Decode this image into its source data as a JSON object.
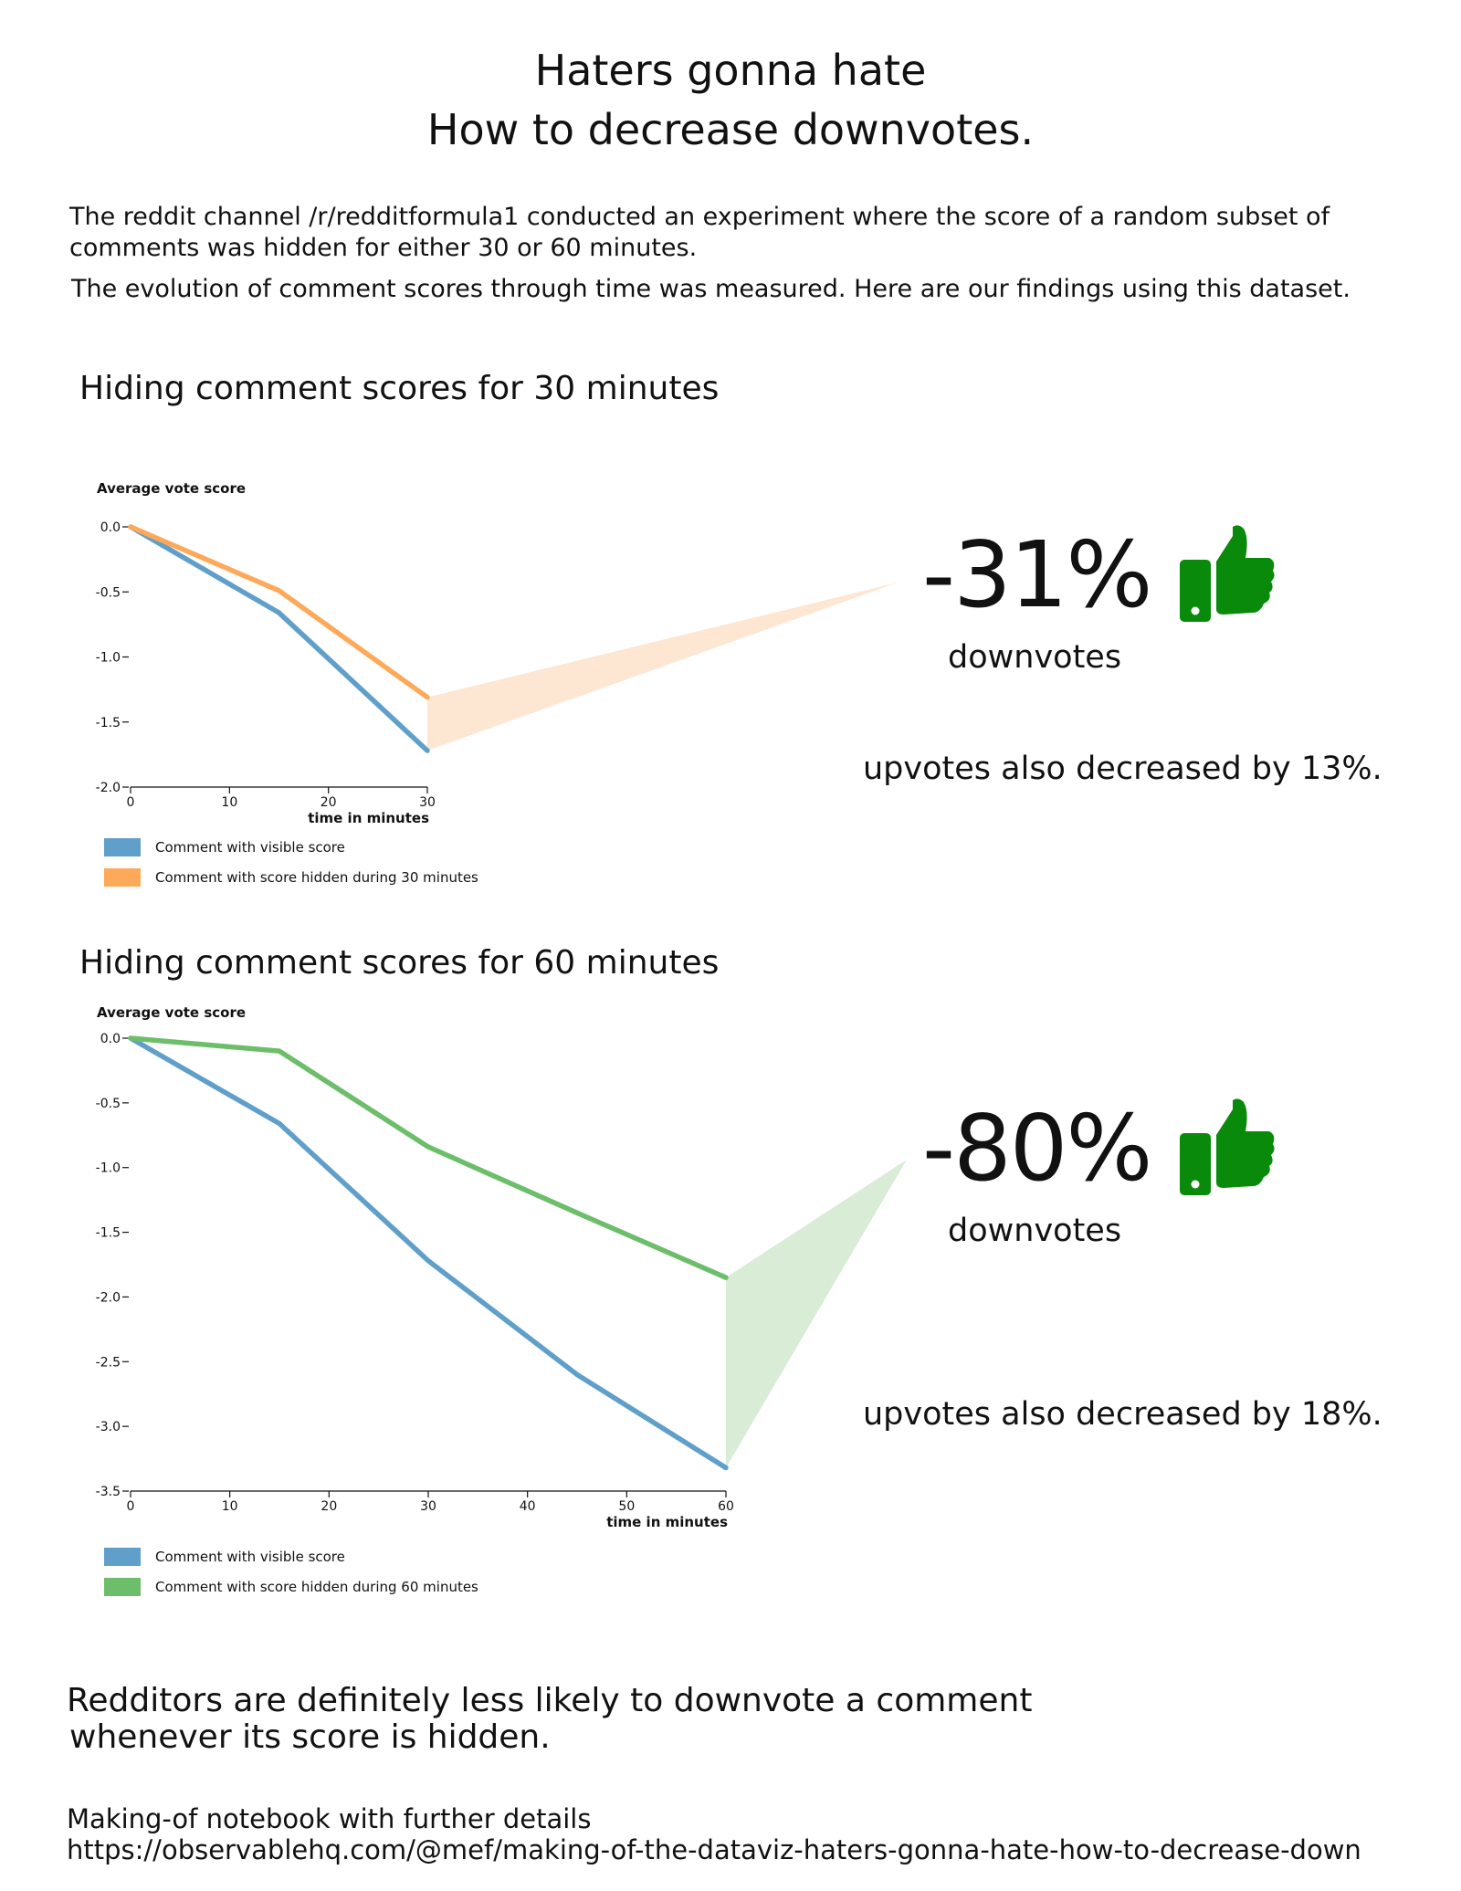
{
  "header": {
    "title_line1": "Haters gonna hate",
    "title_line2": "How to decrease downvotes."
  },
  "intro": {
    "paragraph1": "The reddit channel /r/redditformula1 conducted an experiment where the score of a random subset of comments was hidden for either 30 or 60 minutes.",
    "paragraph2": "The evolution of comment scores through time was measured. Here are our findings using this dataset."
  },
  "colors": {
    "visible": "#5f9fc9",
    "hidden30": "#fda95a",
    "hidden30_fill": "#fde6d2",
    "hidden60": "#6cbe6a",
    "hidden60_fill": "#d8ecd6",
    "thumb": "#0a8a0a"
  },
  "sections": [
    {
      "title": "Hiding comment scores for 30 minutes",
      "pct": "-31%",
      "pct_label": "downvotes",
      "upvotes_text": "upvotes also decreased by 13%.",
      "icon": "thumbs-up-icon"
    },
    {
      "title": "Hiding comment scores for 60 minutes",
      "pct": "-80%",
      "pct_label": "downvotes",
      "upvotes_text": "upvotes also decreased by 18%.",
      "icon": "thumbs-up-icon"
    }
  ],
  "chart_data": [
    {
      "type": "line",
      "title": "",
      "ylabel": "Average vote score",
      "xlabel": "time in minutes",
      "xlim": [
        0,
        30
      ],
      "ylim": [
        -2.0,
        0.0
      ],
      "xticks": [
        0,
        10,
        20,
        30
      ],
      "yticks": [
        0.0,
        -0.5,
        -1.0,
        -1.5,
        -2.0
      ],
      "ytick_labels": [
        "0.0",
        "-0.5",
        "-1.0",
        "-1.5",
        "-2.0"
      ],
      "legend": "bottom-left",
      "series": [
        {
          "name": "Comment with visible score",
          "color": "#5f9fc9",
          "x": [
            0,
            15,
            30
          ],
          "y": [
            0.0,
            -0.66,
            -1.72
          ]
        },
        {
          "name": "Comment with score hidden during 30 minutes",
          "color": "#fda95a",
          "x": [
            0,
            15,
            30
          ],
          "y": [
            0.0,
            -0.49,
            -1.31
          ]
        }
      ]
    },
    {
      "type": "line",
      "title": "",
      "ylabel": "Average vote score",
      "xlabel": "time in minutes",
      "xlim": [
        0,
        60
      ],
      "ylim": [
        -3.5,
        0.0
      ],
      "xticks": [
        0,
        10,
        20,
        30,
        40,
        50,
        60
      ],
      "yticks": [
        0.0,
        -0.5,
        -1.0,
        -1.5,
        -2.0,
        -2.5,
        -3.0,
        -3.5
      ],
      "ytick_labels": [
        "0.0",
        "-0.5",
        "-1.0",
        "-1.5",
        "-2.0",
        "-2.5",
        "-3.0",
        "-3.5"
      ],
      "legend": "bottom-left",
      "series": [
        {
          "name": "Comment with visible score",
          "color": "#5f9fc9",
          "x": [
            0,
            15,
            30,
            45,
            60
          ],
          "y": [
            0.0,
            -0.66,
            -1.72,
            -2.6,
            -3.32
          ]
        },
        {
          "name": "Comment with score hidden during 60 minutes",
          "color": "#6cbe6a",
          "x": [
            0,
            15,
            30,
            45,
            60
          ],
          "y": [
            0.0,
            -0.1,
            -0.84,
            -1.35,
            -1.85
          ]
        }
      ]
    }
  ],
  "conclusion": {
    "line1": "Redditors are definitely less likely to downvote a comment",
    "line2": "whenever its score is hidden."
  },
  "footer": {
    "line1": "Making-of notebook with further details",
    "line2": "https://observablehq.com/@mef/making-of-the-dataviz-haters-gonna-hate-how-to-decrease-down"
  }
}
